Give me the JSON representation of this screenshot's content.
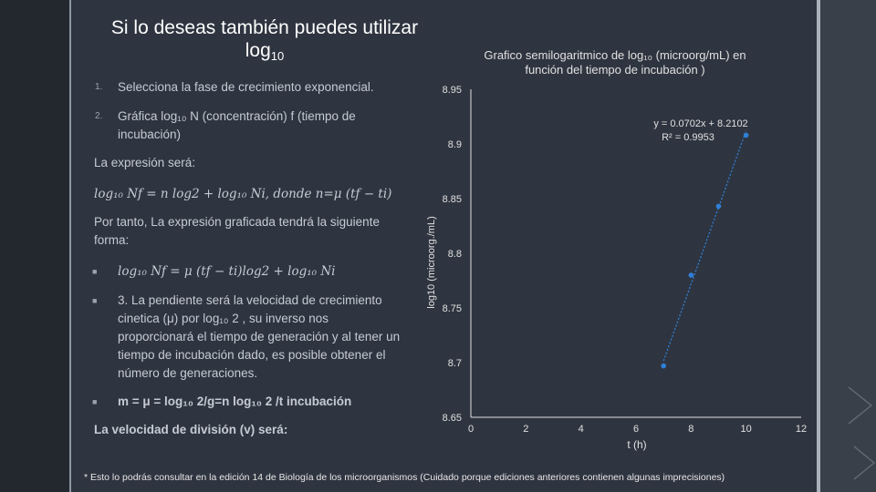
{
  "slide": {
    "title_main": "Si lo deseas también puedes utilizar log",
    "title_sub": "10",
    "step1_num": "1.",
    "step1_text": "Selecciona la fase de crecimiento exponencial.",
    "step2_num": "2.",
    "step2_text": "Gráfica log₁₀ N (concentración) f (tiempo de incubación)",
    "expression_label": "La expresión será:",
    "expression_formula": "log₁₀ Nf = n log2 + log₁₀ Ni, donde n=μ (tf − ti)",
    "therefore_text": "Por tanto, La expresión graficada tendrá la siguiente forma:",
    "bullet_formula": "log₁₀ Nf = μ (tf − ti)log2 + log₁₀ Ni",
    "bullet3_text": "3. La pendiente será la velocidad de crecimiento cinetica (μ) por log₁₀ 2 , su inverso nos proporcionará el tiempo de generación y al tener un tiempo de incubación dado, es posible obtener el número de generaciones.",
    "bullet4_text": "m = μ = log₁₀ 2/g=n log₁₀ 2 /t incubación",
    "division_text": "La velocidad de división (v) será:",
    "footnote": "* Esto lo podrás consultar en la edición 14 de Biología de los microorganismos (Cuidado porque ediciones anteriores contienen algunas imprecisiones)"
  },
  "colors": {
    "background": "#2f3540",
    "text": "#c5cbd3",
    "title": "#ffffff",
    "series": "#2f7fd6",
    "axis": "#e0e0e0"
  },
  "chart_data": {
    "type": "scatter",
    "title": "Grafico semilogaritmico de log₁₀ (microorg/mL) en función del tiempo de incubación )",
    "xlabel": "t (h)",
    "ylabel": "log10 (microorg./mL)",
    "xlim": [
      0,
      12
    ],
    "ylim": [
      8.65,
      8.95
    ],
    "x_ticks": [
      "0",
      "2",
      "4",
      "6",
      "8",
      "10",
      "12"
    ],
    "y_ticks": [
      "8.65",
      "8.7",
      "8.75",
      "8.8",
      "8.85",
      "8.9",
      "8.95"
    ],
    "series": [
      {
        "x": [
          7,
          8,
          9,
          10
        ],
        "y": [
          8.697,
          8.78,
          8.843,
          8.908
        ]
      }
    ],
    "trendline": {
      "slope": 0.0702,
      "intercept": 8.2102,
      "x_range": [
        7,
        10
      ],
      "style": "dotted"
    },
    "annotation_line1": "y = 0.0702x + 8.2102",
    "annotation_line2": "R² = 0.9953",
    "grid": false,
    "legend": "none"
  }
}
